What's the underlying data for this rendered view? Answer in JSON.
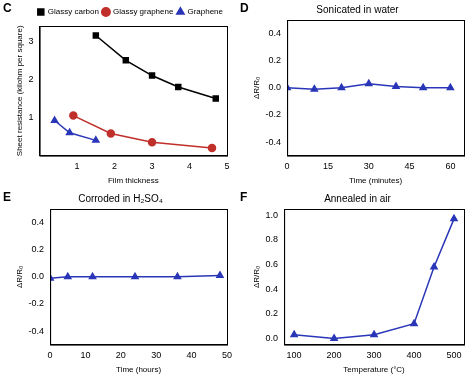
{
  "chart_data": [
    {
      "type": "line",
      "panel": "C",
      "xlabel": "Film thickness",
      "ylabel": "Sheet resistance (kilohm per square)",
      "xlim": [
        0,
        5
      ],
      "xticks": [
        1,
        2,
        3,
        4,
        5
      ],
      "ylim": [
        0,
        3.4
      ],
      "yticks": [
        1,
        2,
        3
      ],
      "legend": "upper right",
      "grid": false,
      "series": [
        {
          "name": "Glassy carbon",
          "color": "#000000",
          "marker": "square",
          "line_style": "solid",
          "x": [
            1.5,
            2.3,
            3.0,
            3.7,
            4.7
          ],
          "values": [
            3.15,
            2.5,
            2.1,
            1.8,
            1.5
          ]
        },
        {
          "name": "Glassy graphene",
          "color": "#c0302a",
          "marker": "circle",
          "line_style": "solid",
          "x": [
            0.9,
            1.9,
            3.0,
            4.6
          ],
          "values": [
            1.05,
            0.58,
            0.35,
            0.2
          ]
        },
        {
          "name": "Graphene",
          "color": "#2a36b8",
          "marker": "triangle",
          "line_style": "solid",
          "x": [
            0.4,
            0.8,
            1.5
          ],
          "values": [
            0.92,
            0.6,
            0.4
          ]
        }
      ]
    },
    {
      "type": "line",
      "panel": "D",
      "title": "Sonicated in water",
      "xlabel": "Time (minutes)",
      "ylabel": "ΔR/R₀",
      "xlim": [
        0,
        65
      ],
      "xticks": [
        0,
        15,
        30,
        45,
        60
      ],
      "ylim": [
        -0.5,
        0.5
      ],
      "yticks": [
        -0.4,
        -0.2,
        {
          "value": 0,
          "label": "0.0"
        },
        0.2,
        0.4
      ],
      "grid": false,
      "color": "#2a36b8",
      "marker": "triangle",
      "line_style": "solid",
      "x": [
        0,
        10,
        20,
        30,
        40,
        50,
        60
      ],
      "values": [
        0,
        -0.01,
        0,
        0.03,
        0.01,
        0,
        0
      ]
    },
    {
      "type": "line",
      "panel": "E",
      "title": "Corroded in H₂SO₄",
      "xlabel": "Time (hours)",
      "ylabel": "ΔR/R₀",
      "xlim": [
        0,
        50
      ],
      "xticks": [
        0,
        10,
        20,
        30,
        40,
        50
      ],
      "ylim": [
        -0.5,
        0.5
      ],
      "yticks": [
        -0.4,
        -0.2,
        {
          "value": 0,
          "label": "0.0"
        },
        0.2,
        0.4
      ],
      "grid": false,
      "color": "#2a36b8",
      "marker": "triangle",
      "line_style": "solid",
      "x": [
        0,
        5,
        12,
        24,
        36,
        48
      ],
      "values": [
        -0.01,
        0,
        0,
        0,
        0,
        0.01
      ]
    },
    {
      "type": "line",
      "panel": "F",
      "title": "Annealed in air",
      "xlabel": "Temperature (°C)",
      "ylabel": "ΔR/R₀",
      "xlim": [
        75,
        525
      ],
      "xticks": [
        100,
        200,
        300,
        400,
        500
      ],
      "ylim": [
        -0.05,
        1.05
      ],
      "yticks": [
        {
          "value": 0,
          "label": "0.0"
        },
        0.2,
        0.4,
        0.6,
        0.8,
        {
          "value": 1,
          "label": "1.0"
        }
      ],
      "grid": false,
      "color": "#2a36b8",
      "marker": "triangle",
      "line_style": "solid",
      "x": [
        100,
        200,
        300,
        400,
        450,
        500
      ],
      "values": [
        0.03,
        0,
        0.03,
        0.12,
        0.58,
        0.97
      ]
    }
  ]
}
